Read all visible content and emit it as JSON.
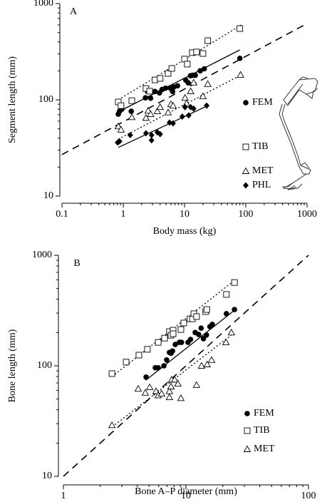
{
  "chart_data": [
    {
      "type": "scatter",
      "label": "A",
      "x_label": "Body mass (kg)",
      "y_label": "Segment length (mm)",
      "log_scale": true,
      "xlim": [
        0.1,
        1000
      ],
      "ylim": [
        10,
        1000
      ],
      "xticks": [
        0.1,
        1,
        10,
        100,
        1000
      ],
      "yticks": [
        10,
        100,
        1000
      ],
      "series": [
        {
          "name": "FEM",
          "marker": "circle",
          "color": "#000",
          "x": [
            0.83,
            0.87,
            0.95,
            1.35,
            2.3,
            2.5,
            2.8,
            3.3,
            3.9,
            4.3,
            4.9,
            5.9,
            6.4,
            6.7,
            7.7,
            10.5,
            11.5,
            12.5,
            13.5,
            15,
            18,
            21,
            80
          ],
          "values": [
            71,
            76,
            80,
            76,
            105,
            122,
            104,
            122,
            118,
            128,
            132,
            132,
            122,
            136,
            140,
            160,
            150,
            178,
            180,
            180,
            200,
            210,
            270
          ]
        },
        {
          "name": "TIB",
          "marker": "square",
          "color": "#000",
          "x": [
            0.83,
            0.92,
            1.38,
            2.35,
            2.7,
            3.3,
            4.0,
            5.4,
            6.2,
            10,
            11.1,
            13.4,
            15.7,
            20,
            24,
            80
          ],
          "values": [
            95,
            87,
            98,
            131,
            123,
            161,
            167,
            188,
            212,
            265,
            235,
            309,
            314,
            303,
            412,
            550
          ]
        },
        {
          "name": "MET",
          "marker": "triangle",
          "color": "#000",
          "x": [
            0.83,
            0.92,
            1.38,
            2.35,
            2.55,
            2.8,
            3.6,
            4.0,
            5.4,
            6,
            6.5,
            10.2,
            10.8,
            12.6,
            14.1,
            20,
            24,
            82
          ],
          "values": [
            53,
            49,
            66,
            65,
            77,
            71,
            76,
            84,
            74,
            90,
            87,
            105,
            92,
            123,
            151,
            109,
            146,
            182
          ]
        },
        {
          "name": "PHL",
          "marker": "diamond",
          "color": "#000",
          "x": [
            0.81,
            0.87,
            1.3,
            2.35,
            2.9,
            2.9,
            3.6,
            4,
            5.7,
            6.5,
            9.2,
            10.2,
            11.7,
            12.6,
            14.1,
            23
          ],
          "values": [
            36,
            37,
            43,
            45,
            43,
            38,
            46,
            44,
            58,
            57,
            67,
            84,
            69,
            84,
            81,
            87
          ]
        }
      ],
      "fits": [
        {
          "x": [
            0.83,
            80
          ],
          "values": [
            75,
            330
          ],
          "style": "solid"
        },
        {
          "x": [
            0.83,
            85
          ],
          "values": [
            100,
            600
          ],
          "style": "dotted"
        },
        {
          "x": [
            0.83,
            85
          ],
          "values": [
            39,
            182
          ],
          "style": "dotted"
        },
        {
          "x": [
            0.83,
            24
          ],
          "values": [
            32,
            87
          ],
          "style": "solid"
        }
      ],
      "reference_line": {
        "x": [
          0.1,
          1000
        ],
        "values": [
          27,
          620
        ],
        "style": "dashed"
      }
    },
    {
      "type": "scatter",
      "label": "B",
      "x_label": "Bone A–P diameter (mm)",
      "y_label": "Bone length (mm)",
      "log_scale": true,
      "xlim": [
        1,
        100
      ],
      "ylim": [
        10,
        1000
      ],
      "xticks": [
        1,
        10,
        100
      ],
      "yticks": [
        10,
        100,
        1000
      ],
      "series": [
        {
          "name": "FEM",
          "marker": "circle",
          "color": "#000",
          "x": [
            4.73,
            5.62,
            5.94,
            6.61,
            6.96,
            7.55,
            7.33,
            7.77,
            8.19,
            8.85,
            9.2,
            10.4,
            10.9,
            11.9,
            12.7,
            13.3,
            13.9,
            14.7,
            15.7,
            16.4,
            21.4,
            24.9
          ],
          "values": [
            79,
            96,
            96,
            100,
            113,
            130,
            132,
            136,
            156,
            163,
            163,
            163,
            173,
            200,
            192,
            219,
            176,
            190,
            226,
            237,
            296,
            323
          ]
        },
        {
          "name": "TIB",
          "marker": "square",
          "color": "#000",
          "x": [
            2.49,
            3.25,
            4.13,
            4.85,
            5.94,
            6.69,
            7.33,
            7.55,
            7.86,
            7.86,
            9.1,
            9.6,
            10.8,
            11.3,
            11.6,
            12.2,
            14.5,
            14.8,
            21.4,
            24.9
          ],
          "values": [
            85,
            108,
            125,
            141,
            163,
            178,
            204,
            189,
            210,
            195,
            213,
            244,
            266,
            266,
            296,
            279,
            309,
            323,
            442,
            567
          ]
        },
        {
          "name": "MET",
          "marker": "triangle",
          "color": "#000",
          "x": [
            2.49,
            4.08,
            4.66,
            5.06,
            5.7,
            5.94,
            6.33,
            7.33,
            7.33,
            7.55,
            7.66,
            8.09,
            8.6,
            9.1,
            12.2,
            13.4,
            14.9,
            16.2,
            21.2,
            23.5
          ],
          "values": [
            29,
            62,
            57,
            64,
            59,
            54,
            56,
            59,
            52,
            65,
            75,
            75,
            69,
            51,
            67,
            100,
            103,
            113,
            163,
            200
          ]
        }
      ],
      "fits": [
        {
          "x": [
            4.7,
            25
          ],
          "values": [
            74,
            319
          ],
          "style": "solid"
        },
        {
          "x": [
            2.5,
            25
          ],
          "values": [
            80,
            595
          ],
          "style": "dotted"
        },
        {
          "x": [
            2.5,
            23.5
          ],
          "values": [
            28,
            190
          ],
          "style": "dotted"
        }
      ],
      "reference_line": {
        "x": [
          1,
          100
        ],
        "values": [
          10,
          1000
        ],
        "style": "dashed"
      }
    }
  ]
}
